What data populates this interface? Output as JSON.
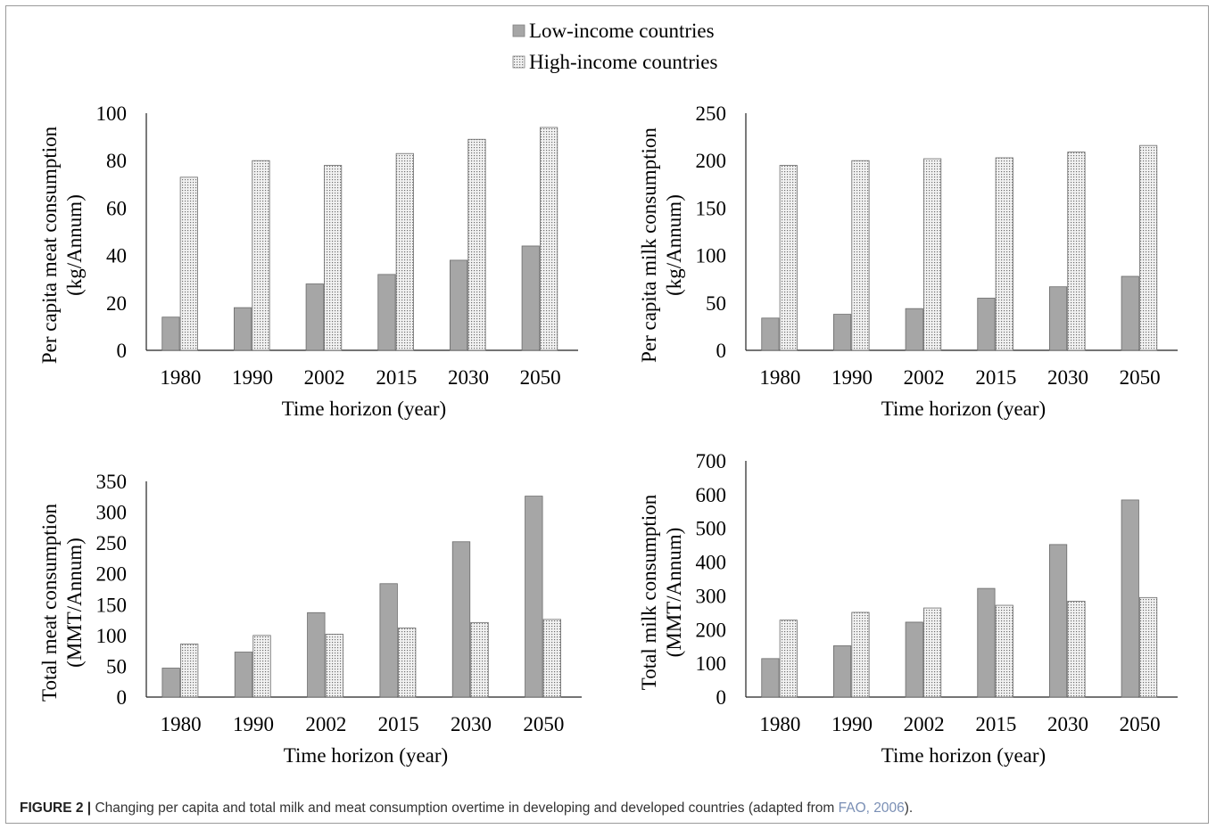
{
  "legend": [
    {
      "name": "Low-income countries",
      "pattern": "solid",
      "color": "#a6a6a6"
    },
    {
      "name": "High-income countries",
      "pattern": "dots",
      "color": "#d9d9d9"
    }
  ],
  "chart_data": [
    {
      "type": "bar",
      "categories": [
        "1980",
        "1990",
        "2002",
        "2015",
        "2030",
        "2050"
      ],
      "series": [
        {
          "name": "Low-income countries",
          "values": [
            14,
            18,
            28,
            32,
            38,
            44
          ]
        },
        {
          "name": "High-income countries",
          "values": [
            73,
            80,
            78,
            83,
            89,
            94
          ]
        }
      ],
      "xlabel": "Time horizon (year)",
      "ylabel": [
        "Per capita meat consumption",
        "(kg/Annum)"
      ],
      "ylim": [
        0,
        100
      ],
      "yticks": [
        "0",
        "20",
        "40",
        "60",
        "80",
        "100"
      ],
      "grid": false
    },
    {
      "type": "bar",
      "categories": [
        "1980",
        "1990",
        "2002",
        "2015",
        "2030",
        "2050"
      ],
      "series": [
        {
          "name": "Low-income countries",
          "values": [
            34,
            38,
            44,
            55,
            67,
            78
          ]
        },
        {
          "name": "High-income countries",
          "values": [
            195,
            200,
            202,
            203,
            209,
            216
          ]
        }
      ],
      "xlabel": "Time horizon (year)",
      "ylabel": [
        "Per capita milk consumption",
        "(kg/Annum)"
      ],
      "ylim": [
        0,
        250
      ],
      "yticks": [
        "0",
        "50",
        "100",
        "150",
        "200",
        "250"
      ],
      "grid": false
    },
    {
      "type": "bar",
      "categories": [
        "1980",
        "1990",
        "2002",
        "2015",
        "2030",
        "2050"
      ],
      "series": [
        {
          "name": "Low-income countries",
          "values": [
            47,
            73,
            137,
            184,
            252,
            326
          ]
        },
        {
          "name": "High-income countries",
          "values": [
            86,
            100,
            102,
            112,
            121,
            126
          ]
        }
      ],
      "xlabel": "Time horizon (year)",
      "ylabel": [
        "Total meat consumption",
        "(MMT/Annum)"
      ],
      "ylim": [
        0,
        350
      ],
      "yticks": [
        "0",
        "50",
        "100",
        "150",
        "200",
        "250",
        "300",
        "350"
      ],
      "grid": false
    },
    {
      "type": "bar",
      "categories": [
        "1980",
        "1990",
        "2002",
        "2015",
        "2030",
        "2050"
      ],
      "series": [
        {
          "name": "Low-income countries",
          "values": [
            114,
            152,
            222,
            322,
            452,
            584
          ]
        },
        {
          "name": "High-income countries",
          "values": [
            228,
            251,
            264,
            272,
            284,
            295
          ]
        }
      ],
      "xlabel": "Time horizon (year)",
      "ylabel": [
        "Total milk consumption",
        "(MMT/Annum)"
      ],
      "ylim": [
        0,
        700
      ],
      "yticks": [
        "0",
        "100",
        "200",
        "300",
        "400",
        "500",
        "600",
        "700"
      ],
      "grid": false
    }
  ],
  "caption": {
    "label": "FIGURE 2 |",
    "text": " Changing per capita and total milk and meat consumption overtime in developing and developed countries (adapted from ",
    "ref": "FAO, 2006",
    "end": ")."
  }
}
